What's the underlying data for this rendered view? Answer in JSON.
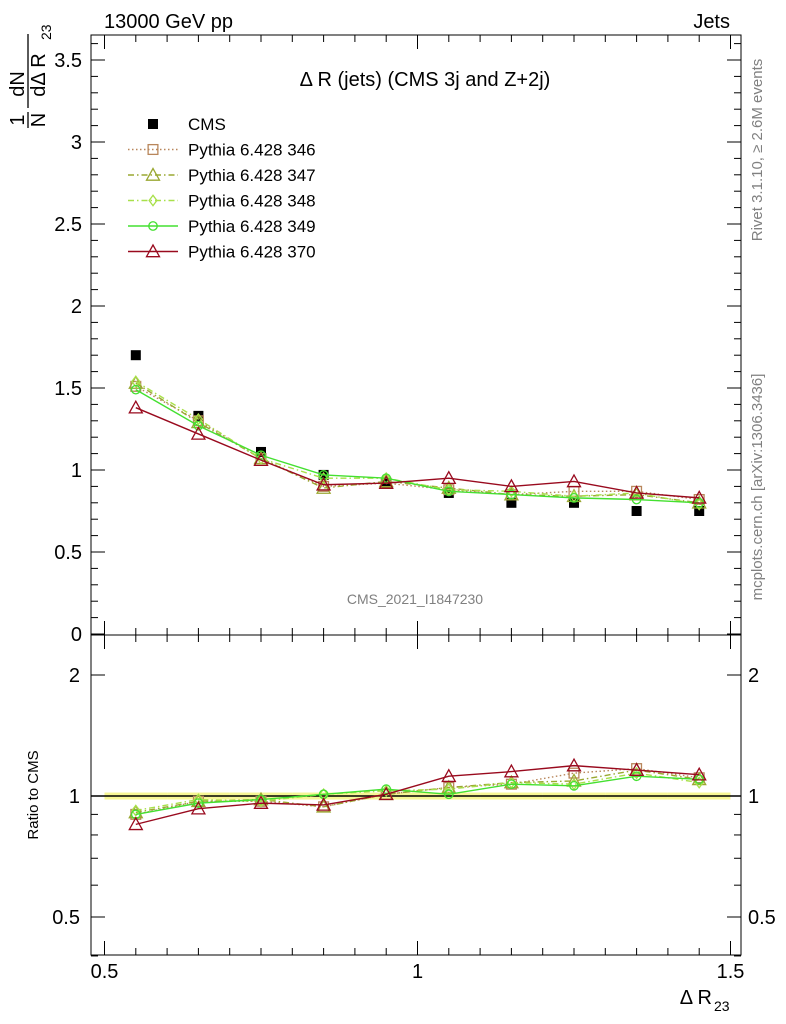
{
  "header": {
    "left": "13000 GeV pp",
    "right": "Jets"
  },
  "plot_title": "Δ R (jets) (CMS 3j and Z+2j)",
  "side_label_top": "Rivet 3.1.10, ≥ 2.6M events",
  "side_label_bottom": "mcplots.cern.ch [arXiv:1306.3436]",
  "watermark": "CMS_2021_I1847230",
  "main_ylabel": {
    "frac_num": "1",
    "frac_den": "N",
    "dnum": "dN",
    "dden": "dΔ R",
    "sub": "23"
  },
  "ratio_ylabel": "Ratio to CMS",
  "xlabel": {
    "main": "Δ R",
    "sub": "23"
  },
  "chart_data": [
    {
      "type": "line",
      "panel": "main",
      "x": [
        0.55,
        0.65,
        0.75,
        0.85,
        0.95,
        1.05,
        1.15,
        1.25,
        1.35,
        1.45
      ],
      "xlim": [
        0.5,
        1.5
      ],
      "ylim": [
        0,
        3.65
      ],
      "y_ticks": [
        0,
        0.5,
        1,
        1.5,
        2,
        2.5,
        3,
        3.5
      ],
      "y_tick_labels": [
        "0",
        "0.5",
        "1",
        "1.5",
        "2",
        "2.5",
        "3",
        "3.5"
      ],
      "series": [
        {
          "name": "CMS",
          "color": "#000000",
          "style": "data",
          "values": [
            1.7,
            1.33,
            1.11,
            0.97,
            0.92,
            0.86,
            0.8,
            0.8,
            0.75,
            0.75
          ]
        },
        {
          "name": "Pythia 6.428 346",
          "color": "#b8865b",
          "style": "dotted",
          "marker": "square",
          "values": [
            1.51,
            1.3,
            1.07,
            0.9,
            0.92,
            0.88,
            0.85,
            0.87,
            0.87,
            0.82
          ]
        },
        {
          "name": "Pythia 6.428 347",
          "color": "#9aa832",
          "style": "dashdot",
          "marker": "triangle",
          "values": [
            1.53,
            1.29,
            1.07,
            0.89,
            0.93,
            0.89,
            0.85,
            0.84,
            0.85,
            0.8
          ]
        },
        {
          "name": "Pythia 6.428 348",
          "color": "#a8e04a",
          "style": "dashdot",
          "marker": "diamond",
          "values": [
            1.54,
            1.31,
            1.07,
            0.95,
            0.95,
            0.88,
            0.87,
            0.84,
            0.86,
            0.79
          ]
        },
        {
          "name": "Pythia 6.428 349",
          "color": "#44e030",
          "style": "solid",
          "marker": "circle",
          "values": [
            1.49,
            1.27,
            1.09,
            0.97,
            0.95,
            0.87,
            0.85,
            0.83,
            0.82,
            0.8
          ]
        },
        {
          "name": "Pythia 6.428 370",
          "color": "#990a1e",
          "style": "solid",
          "marker": "triangle",
          "values": [
            1.38,
            1.22,
            1.06,
            0.91,
            0.92,
            0.95,
            0.9,
            0.93,
            0.86,
            0.83
          ]
        }
      ]
    },
    {
      "type": "line",
      "panel": "ratio",
      "x": [
        0.55,
        0.65,
        0.75,
        0.85,
        0.95,
        1.05,
        1.15,
        1.25,
        1.35,
        1.45
      ],
      "xlim": [
        0.5,
        1.5
      ],
      "ylim": [
        0.4,
        2.35
      ],
      "y_ticks": [
        0.5,
        1,
        2
      ],
      "y_tick_labels": [
        "0.5",
        "1",
        "2"
      ],
      "x_ticks": [
        0.5,
        1,
        1.5
      ],
      "x_tick_labels": [
        "0.5",
        "1",
        "1.5"
      ],
      "reference": 1,
      "series": [
        {
          "name": "Pythia 6.428 346",
          "color": "#b8865b",
          "style": "dotted",
          "marker": "square",
          "values": [
            0.9,
            0.97,
            0.97,
            0.94,
            1.01,
            1.05,
            1.07,
            1.14,
            1.17,
            1.11
          ]
        },
        {
          "name": "Pythia 6.428 347",
          "color": "#9aa832",
          "style": "dashdot",
          "marker": "triangle",
          "values": [
            0.91,
            0.97,
            0.98,
            0.94,
            1.01,
            1.05,
            1.08,
            1.09,
            1.16,
            1.1
          ]
        },
        {
          "name": "Pythia 6.428 348",
          "color": "#a8e04a",
          "style": "dashdot",
          "marker": "diamond",
          "values": [
            0.92,
            0.98,
            0.97,
            1.01,
            1.03,
            1.04,
            1.08,
            1.07,
            1.14,
            1.08
          ]
        },
        {
          "name": "Pythia 6.428 349",
          "color": "#44e030",
          "style": "solid",
          "marker": "circle",
          "values": [
            0.9,
            0.96,
            0.98,
            1.01,
            1.04,
            1.01,
            1.07,
            1.06,
            1.12,
            1.1
          ]
        },
        {
          "name": "Pythia 6.428 370",
          "color": "#990a1e",
          "style": "solid",
          "marker": "triangle",
          "values": [
            0.85,
            0.93,
            0.96,
            0.95,
            1.01,
            1.12,
            1.15,
            1.19,
            1.16,
            1.13
          ]
        }
      ]
    }
  ]
}
